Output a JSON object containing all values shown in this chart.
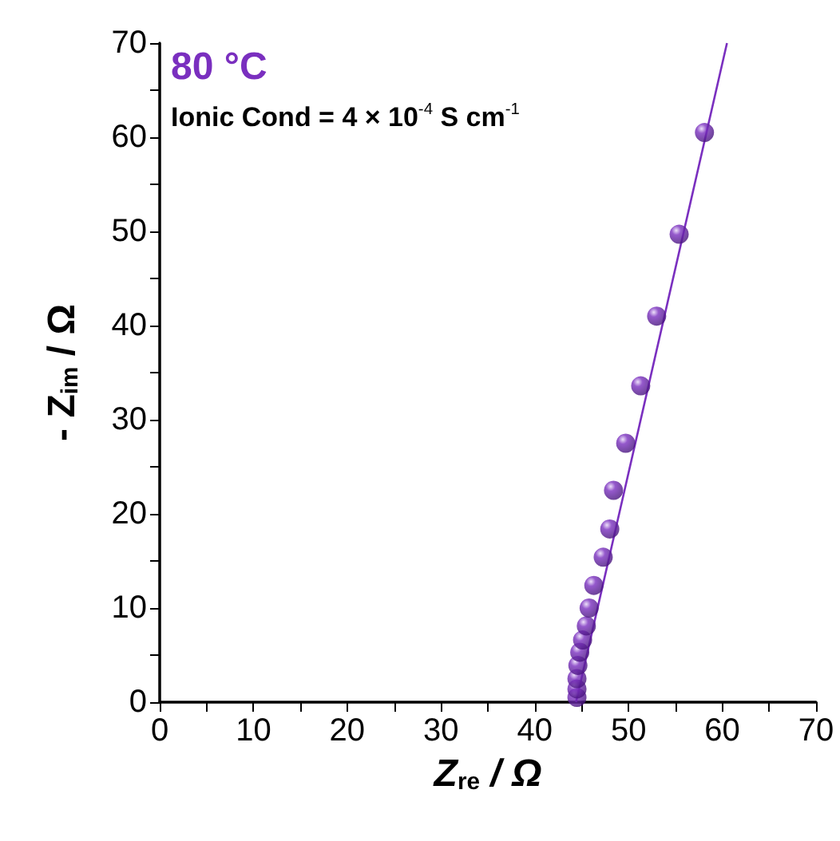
{
  "chart_data": {
    "type": "scatter",
    "xlabel": "Z$_{re}$ / Ω",
    "ylabel": "- Z$_{im}$ / Ω",
    "annotations": [
      "80 °C",
      "Ionic Cond = 4 × 10$^{-4}$ S cm$^{-1}$"
    ],
    "series": [
      {
        "color": "#7a2fbf",
        "x": [
          44.5,
          44.5,
          44.5,
          44.6,
          44.8,
          45.1,
          45.5,
          45.8,
          46.3,
          47.3,
          48.0,
          48.4,
          49.7,
          51.3,
          53.0,
          55.4,
          58.1
        ],
        "values": [
          0.5,
          1.4,
          2.5,
          3.9,
          5.3,
          6.6,
          8.1,
          10.0,
          12.4,
          15.4,
          18.4,
          22.5,
          27.5,
          33.6,
          41.0,
          49.7,
          60.5
        ],
        "marker": "circle"
      },
      {
        "type": "line",
        "color": "#7a2fbf",
        "x": [
          44.4,
          60.5
        ],
        "values": [
          0,
          70
        ],
        "marker": "none",
        "line_style": "solid"
      }
    ],
    "xlim": [
      0,
      70
    ],
    "ylim": [
      0,
      70
    ],
    "xticks": [
      0,
      10,
      20,
      30,
      40,
      50,
      60,
      70
    ],
    "yticks": [
      0,
      10,
      20,
      30,
      40,
      50,
      60,
      70
    ],
    "grid": false
  }
}
